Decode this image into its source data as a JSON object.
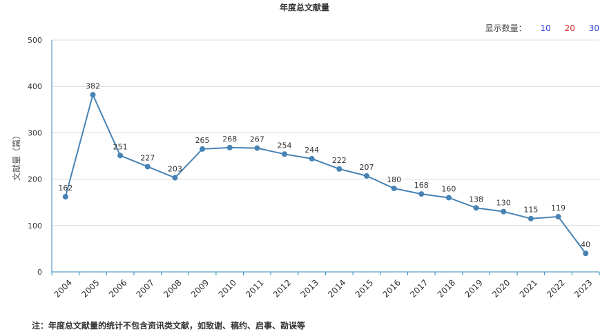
{
  "title": "年度总文献量",
  "count_selector": {
    "label": "显示数量：",
    "options": [
      {
        "label": "10",
        "color": "#2f3cd1"
      },
      {
        "label": "20",
        "color": "#d42a2a"
      },
      {
        "label": "30",
        "color": "#2f3cd1"
      }
    ]
  },
  "footnote": "注：年度总文献量的统计不包含资讯类文献，如致谢、稿约、启事、勘误等",
  "chart_data": {
    "type": "line",
    "title": "年度总文献量",
    "ylabel": "文献量（篇）",
    "xlabel": "",
    "ylim": [
      0,
      500
    ],
    "yticks": [
      "0",
      "100",
      "200",
      "300",
      "400",
      "500"
    ],
    "grid": true,
    "line_color": "#4682b4",
    "categories": [
      "2004",
      "2005",
      "2006",
      "2007",
      "2008",
      "2009",
      "2010",
      "2011",
      "2012",
      "2013",
      "2014",
      "2015",
      "2016",
      "2017",
      "2018",
      "2019",
      "2020",
      "2021",
      "2022",
      "2023"
    ],
    "values": [
      162,
      382,
      251,
      227,
      203,
      265,
      268,
      267,
      254,
      244,
      222,
      207,
      180,
      168,
      160,
      138,
      130,
      115,
      119,
      40
    ]
  }
}
